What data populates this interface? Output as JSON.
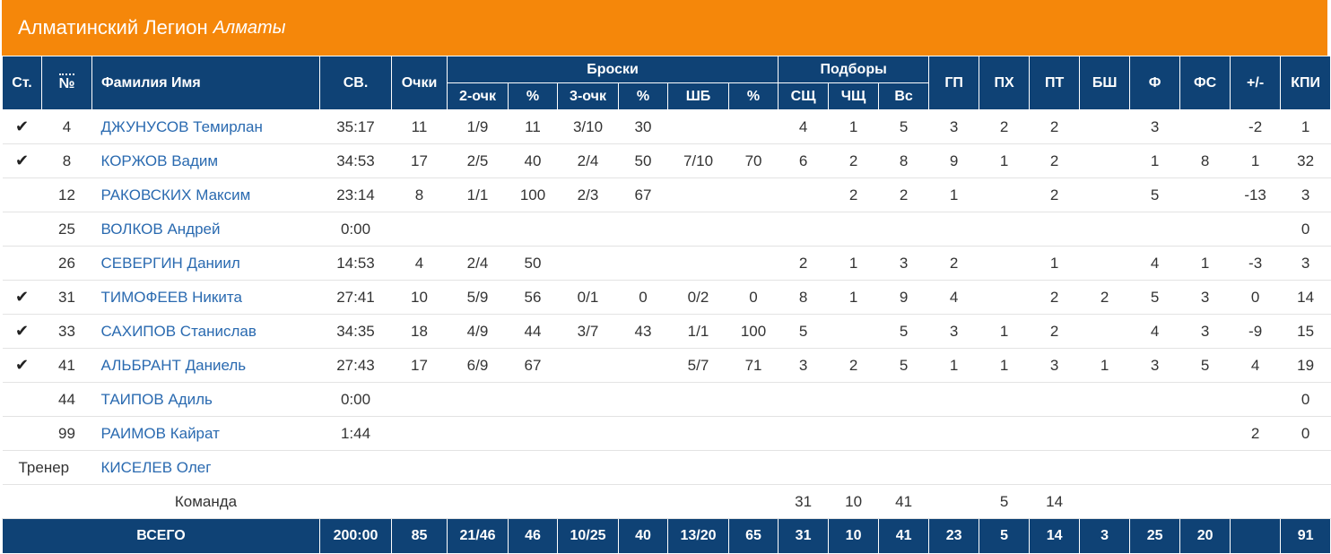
{
  "header": {
    "team_name": "Алматинский Легион",
    "city": "Алматы"
  },
  "columns": {
    "start": "Ст.",
    "number": "№",
    "name": "Фамилия Имя",
    "minutes": "СВ.",
    "points": "Очки",
    "shots_group": "Броски",
    "two_pt": "2-очк",
    "two_pct": "%",
    "three_pt": "3-очк",
    "three_pct": "%",
    "ft": "ШБ",
    "ft_pct": "%",
    "rebounds_group": "Подборы",
    "reb_def": "СЩ",
    "reb_off": "ЧЩ",
    "reb_total": "Вс",
    "assists": "ГП",
    "steals": "ПХ",
    "turnovers": "ПТ",
    "blocks": "БШ",
    "fouls": "Ф",
    "fouls_drawn": "ФС",
    "plus_minus": "+/-",
    "efficiency": "КПИ"
  },
  "players": [
    {
      "start": "✔",
      "num": "4",
      "name": "ДЖУНУСОВ Темирлан",
      "min": "35:17",
      "pts": "11",
      "two": "1/9",
      "two_pct": "11",
      "three": "3/10",
      "three_pct": "30",
      "ft": "",
      "ft_pct": "",
      "sd": "4",
      "so": "1",
      "st": "5",
      "as": "3",
      "stl": "2",
      "to": "2",
      "bs": "",
      "f": "3",
      "fs": "",
      "pm": "-2",
      "eff": "1"
    },
    {
      "start": "✔",
      "num": "8",
      "name": "КОРЖОВ Вадим",
      "min": "34:53",
      "pts": "17",
      "two": "2/5",
      "two_pct": "40",
      "three": "2/4",
      "three_pct": "50",
      "ft": "7/10",
      "ft_pct": "70",
      "sd": "6",
      "so": "2",
      "st": "8",
      "as": "9",
      "stl": "1",
      "to": "2",
      "bs": "",
      "f": "1",
      "fs": "8",
      "pm": "1",
      "eff": "32"
    },
    {
      "start": "",
      "num": "12",
      "name": "РАКОВСКИХ Максим",
      "min": "23:14",
      "pts": "8",
      "two": "1/1",
      "two_pct": "100",
      "three": "2/3",
      "three_pct": "67",
      "ft": "",
      "ft_pct": "",
      "sd": "",
      "so": "2",
      "st": "2",
      "as": "1",
      "stl": "",
      "to": "2",
      "bs": "",
      "f": "5",
      "fs": "",
      "pm": "-13",
      "eff": "3"
    },
    {
      "start": "",
      "num": "25",
      "name": "ВОЛКОВ Андрей",
      "min": "0:00",
      "pts": "",
      "two": "",
      "two_pct": "",
      "three": "",
      "three_pct": "",
      "ft": "",
      "ft_pct": "",
      "sd": "",
      "so": "",
      "st": "",
      "as": "",
      "stl": "",
      "to": "",
      "bs": "",
      "f": "",
      "fs": "",
      "pm": "",
      "eff": "0"
    },
    {
      "start": "",
      "num": "26",
      "name": "СЕВЕРГИН Даниил",
      "min": "14:53",
      "pts": "4",
      "two": "2/4",
      "two_pct": "50",
      "three": "",
      "three_pct": "",
      "ft": "",
      "ft_pct": "",
      "sd": "2",
      "so": "1",
      "st": "3",
      "as": "2",
      "stl": "",
      "to": "1",
      "bs": "",
      "f": "4",
      "fs": "1",
      "pm": "-3",
      "eff": "3"
    },
    {
      "start": "✔",
      "num": "31",
      "name": "ТИМОФЕЕВ Никита",
      "min": "27:41",
      "pts": "10",
      "two": "5/9",
      "two_pct": "56",
      "three": "0/1",
      "three_pct": "0",
      "ft": "0/2",
      "ft_pct": "0",
      "sd": "8",
      "so": "1",
      "st": "9",
      "as": "4",
      "stl": "",
      "to": "2",
      "bs": "2",
      "f": "5",
      "fs": "3",
      "pm": "0",
      "eff": "14"
    },
    {
      "start": "✔",
      "num": "33",
      "name": "САХИПОВ Станислав",
      "min": "34:35",
      "pts": "18",
      "two": "4/9",
      "two_pct": "44",
      "three": "3/7",
      "three_pct": "43",
      "ft": "1/1",
      "ft_pct": "100",
      "sd": "5",
      "so": "",
      "st": "5",
      "as": "3",
      "stl": "1",
      "to": "2",
      "bs": "",
      "f": "4",
      "fs": "3",
      "pm": "-9",
      "eff": "15"
    },
    {
      "start": "✔",
      "num": "41",
      "name": "АЛЬБРАНТ Даниель",
      "min": "27:43",
      "pts": "17",
      "two": "6/9",
      "two_pct": "67",
      "three": "",
      "three_pct": "",
      "ft": "5/7",
      "ft_pct": "71",
      "sd": "3",
      "so": "2",
      "st": "5",
      "as": "1",
      "stl": "1",
      "to": "3",
      "bs": "1",
      "f": "3",
      "fs": "5",
      "pm": "4",
      "eff": "19"
    },
    {
      "start": "",
      "num": "44",
      "name": "ТАИПОВ Адиль",
      "min": "0:00",
      "pts": "",
      "two": "",
      "two_pct": "",
      "three": "",
      "three_pct": "",
      "ft": "",
      "ft_pct": "",
      "sd": "",
      "so": "",
      "st": "",
      "as": "",
      "stl": "",
      "to": "",
      "bs": "",
      "f": "",
      "fs": "",
      "pm": "",
      "eff": "0"
    },
    {
      "start": "",
      "num": "99",
      "name": "РАИМОВ Кайрат",
      "min": "1:44",
      "pts": "",
      "two": "",
      "two_pct": "",
      "three": "",
      "three_pct": "",
      "ft": "",
      "ft_pct": "",
      "sd": "",
      "so": "",
      "st": "",
      "as": "",
      "stl": "",
      "to": "",
      "bs": "",
      "f": "",
      "fs": "",
      "pm": "2",
      "eff": "0"
    }
  ],
  "coach": {
    "label": "Тренер",
    "name": "КИСЕЛЕВ Олег"
  },
  "team_row": {
    "label": "Команда",
    "sd": "31",
    "so": "10",
    "st": "41",
    "stl": "5",
    "to": "14"
  },
  "totals": {
    "label": "ВСЕГО",
    "min": "200:00",
    "pts": "85",
    "two": "21/46",
    "two_pct": "46",
    "three": "10/25",
    "three_pct": "40",
    "ft": "13/20",
    "ft_pct": "65",
    "sd": "31",
    "so": "10",
    "st": "41",
    "as": "23",
    "stl": "5",
    "to": "14",
    "bs": "3",
    "f": "25",
    "fs": "20",
    "pm": "",
    "eff": "91"
  },
  "colors": {
    "header_orange": "#f5870a",
    "table_header_blue": "#0f4275",
    "player_link": "#2a6ab0"
  }
}
